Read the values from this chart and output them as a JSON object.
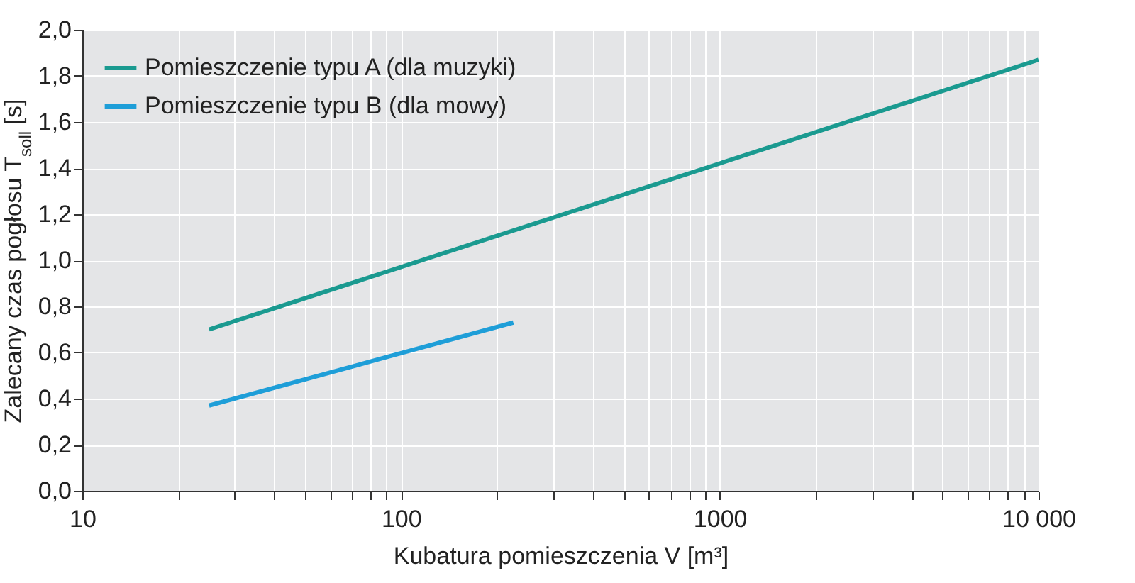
{
  "chart_data": {
    "type": "line",
    "xlabel": "Kubatura pomieszczenia V [m³]",
    "ylabel": "Zalecany czas pogłosu T$_{soll}$ [s]",
    "series": [
      {
        "name": "Pomieszczenie typu A (dla muzyki)",
        "color": "#1a9a90",
        "x": [
          25,
          10000
        ],
        "values": [
          0.7,
          1.87
        ]
      },
      {
        "name": "Pomieszczenie typu B (dla mowy)",
        "color": "#1e9ed8",
        "x": [
          25,
          225
        ],
        "values": [
          0.37,
          0.73
        ]
      }
    ],
    "log": "x",
    "xlim": [
      10,
      10000
    ],
    "xticks": [
      10,
      {
        "value": 20,
        "label": null
      },
      {
        "value": 30,
        "label": null
      },
      {
        "value": 40,
        "label": null
      },
      {
        "value": 50,
        "label": null
      },
      {
        "value": 60,
        "label": null
      },
      {
        "value": 70,
        "label": null
      },
      {
        "value": 80,
        "label": null
      },
      {
        "value": 90,
        "label": null
      },
      100,
      {
        "value": 200,
        "label": null
      },
      {
        "value": 300,
        "label": null
      },
      {
        "value": 400,
        "label": null
      },
      {
        "value": 500,
        "label": null
      },
      {
        "value": 600,
        "label": null
      },
      {
        "value": 700,
        "label": null
      },
      {
        "value": 800,
        "label": null
      },
      {
        "value": 900,
        "label": null
      },
      1000,
      {
        "value": 2000,
        "label": null
      },
      {
        "value": 3000,
        "label": null
      },
      {
        "value": 4000,
        "label": null
      },
      {
        "value": 5000,
        "label": null
      },
      {
        "value": 6000,
        "label": null
      },
      {
        "value": 7000,
        "label": null
      },
      {
        "value": 8000,
        "label": null
      },
      {
        "value": 9000,
        "label": null
      },
      {
        "value": 10000,
        "label": "10 000"
      }
    ],
    "ylim": [
      0,
      2.0
    ],
    "yticks": [
      {
        "value": 0,
        "label": "0,0"
      },
      {
        "value": 0.2,
        "label": "0,2"
      },
      {
        "value": 0.4,
        "label": "0,4"
      },
      {
        "value": 0.6,
        "label": "0,6"
      },
      {
        "value": 0.8,
        "label": "0,8"
      },
      {
        "value": 1.0,
        "label": "1,0"
      },
      {
        "value": 1.2,
        "label": "1,2"
      },
      {
        "value": 1.4,
        "label": "1,4"
      },
      {
        "value": 1.6,
        "label": "1,6"
      },
      {
        "value": 1.8,
        "label": "1,8"
      },
      {
        "value": 2.0,
        "label": "2,0"
      }
    ],
    "grid": true,
    "legend": "top left",
    "line_style": "solid"
  }
}
